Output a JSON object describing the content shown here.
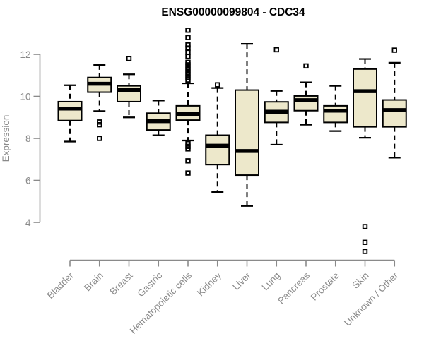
{
  "page": {
    "background": "#ffffff"
  },
  "chart_data": {
    "type": "boxplot",
    "title": "ENSG00000099804 - CDC34",
    "title_color": "#000000",
    "ylabel": "Expression",
    "xlabel": "",
    "yticks": [
      4,
      6,
      8,
      10,
      12
    ],
    "ylim": [
      4,
      12
    ],
    "grid": false,
    "legend": "none",
    "axis_color": "#8a8a8a",
    "box_fill": "#EDE8CB",
    "box_stroke": "#000000",
    "whisker_style": "dashed",
    "outlier_marker": "open-square",
    "categories": [
      "Bladder",
      "Brain",
      "Breast",
      "Gastric",
      "Hematopoietic cells",
      "Kidney",
      "Liver",
      "Lung",
      "Pancreas",
      "Prostate",
      "Skin",
      "Unknown / Other"
    ],
    "boxes": [
      {
        "category": "Bladder",
        "whisker_low": 7.85,
        "q1": 8.85,
        "median": 9.42,
        "q3": 9.75,
        "whisker_high": 10.53,
        "outliers": []
      },
      {
        "category": "Brain",
        "whisker_low": 9.3,
        "q1": 10.2,
        "median": 10.6,
        "q3": 10.9,
        "whisker_high": 11.5,
        "outliers": [
          8.78,
          8.65,
          8.0
        ]
      },
      {
        "category": "Breast",
        "whisker_low": 9.0,
        "q1": 9.75,
        "median": 10.3,
        "q3": 10.5,
        "whisker_high": 11.05,
        "outliers": [
          11.8
        ]
      },
      {
        "category": "Gastric",
        "whisker_low": 8.15,
        "q1": 8.4,
        "median": 8.82,
        "q3": 9.2,
        "whisker_high": 9.8,
        "outliers": []
      },
      {
        "category": "Hematopoietic cells",
        "whisker_low": 7.9,
        "q1": 8.87,
        "median": 9.15,
        "q3": 9.55,
        "whisker_high": 10.62,
        "outliers": [
          13.15,
          12.8,
          12.45,
          12.3,
          12.1,
          11.9,
          11.62,
          11.5,
          11.38,
          11.26,
          11.14,
          11.02,
          10.9,
          10.78,
          7.75,
          7.62,
          7.5,
          6.93,
          6.35
        ]
      },
      {
        "category": "Kidney",
        "whisker_low": 5.45,
        "q1": 6.75,
        "median": 7.65,
        "q3": 8.15,
        "whisker_high": 10.4,
        "outliers": [
          10.55
        ]
      },
      {
        "category": "Liver",
        "whisker_low": 4.78,
        "q1": 6.25,
        "median": 7.4,
        "q3": 10.3,
        "whisker_high": 12.5,
        "outliers": []
      },
      {
        "category": "Lung",
        "whisker_low": 7.7,
        "q1": 8.76,
        "median": 9.27,
        "q3": 9.74,
        "whisker_high": 10.26,
        "outliers": [
          12.22
        ]
      },
      {
        "category": "Pancreas",
        "whisker_low": 8.65,
        "q1": 9.32,
        "median": 9.82,
        "q3": 10.02,
        "whisker_high": 10.67,
        "outliers": [
          11.45
        ]
      },
      {
        "category": "Prostate",
        "whisker_low": 8.35,
        "q1": 8.76,
        "median": 9.32,
        "q3": 9.55,
        "whisker_high": 10.5,
        "outliers": []
      },
      {
        "category": "Skin",
        "whisker_low": 8.03,
        "q1": 8.55,
        "median": 10.25,
        "q3": 11.3,
        "whisker_high": 11.78,
        "outliers": [
          3.8,
          3.05,
          2.62
        ]
      },
      {
        "category": "Unknown / Other",
        "whisker_low": 7.08,
        "q1": 8.55,
        "median": 9.35,
        "q3": 9.83,
        "whisker_high": 11.6,
        "outliers": [
          12.2
        ]
      }
    ]
  }
}
